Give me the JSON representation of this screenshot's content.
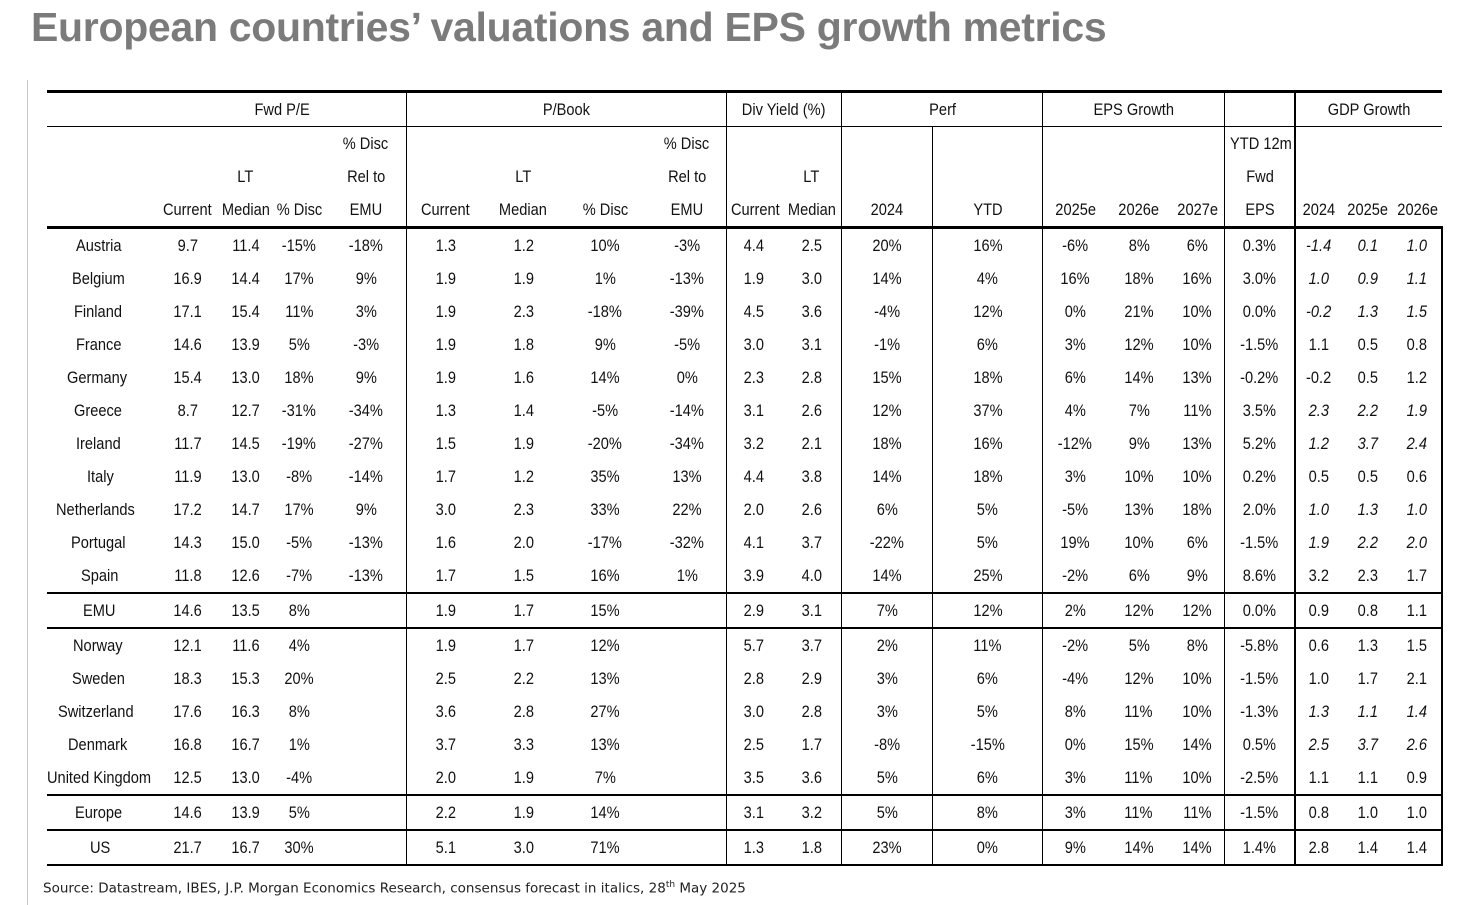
{
  "title": "European countries’ valuations and EPS growth metrics",
  "groups": {
    "fwd_pe": "Fwd P/E",
    "p_book": "P/Book",
    "div_yield": "Div Yield (%)",
    "perf": "Perf",
    "eps_growth": "EPS Growth",
    "gdp_growth": "GDP Growth"
  },
  "subheaders": {
    "disc_rel_1": "% Disc",
    "disc_rel_2": "Rel to",
    "disc_rel_3": "EMU",
    "lt": "LT",
    "current": "Current",
    "median": "Median",
    "pct_disc": "% Disc",
    "ytd12m_1": "YTD 12m",
    "ytd12m_2": "Fwd",
    "ytd12m_3": "EPS",
    "y2024": "2024",
    "ytd": "YTD",
    "y2025e": "2025e",
    "y2026e": "2026e",
    "y2027e": "2027e",
    "g2024": "2024",
    "g2025e": "2025e",
    "g2026e": "2026e"
  },
  "rows": [
    {
      "name": "Austria",
      "c": [
        "9.7",
        "11.4",
        "-15%",
        "-18%",
        "1.3",
        "1.2",
        "10%",
        "-3%",
        "4.4",
        "2.5",
        "20%",
        "16%",
        "-6%",
        "8%",
        "6%",
        "0.3%"
      ],
      "g": [
        "-1.4",
        "0.1",
        "1.0"
      ],
      "gi": [
        true,
        true,
        true
      ]
    },
    {
      "name": "Belgium",
      "c": [
        "16.9",
        "14.4",
        "17%",
        "9%",
        "1.9",
        "1.9",
        "1%",
        "-13%",
        "1.9",
        "3.0",
        "14%",
        "4%",
        "16%",
        "18%",
        "16%",
        "3.0%"
      ],
      "g": [
        "1.0",
        "0.9",
        "1.1"
      ],
      "gi": [
        true,
        true,
        true
      ]
    },
    {
      "name": "Finland",
      "c": [
        "17.1",
        "15.4",
        "11%",
        "3%",
        "1.9",
        "2.3",
        "-18%",
        "-39%",
        "4.5",
        "3.6",
        "-4%",
        "12%",
        "0%",
        "21%",
        "10%",
        "0.0%"
      ],
      "g": [
        "-0.2",
        "1.3",
        "1.5"
      ],
      "gi": [
        true,
        true,
        true
      ]
    },
    {
      "name": "France",
      "c": [
        "14.6",
        "13.9",
        "5%",
        "-3%",
        "1.9",
        "1.8",
        "9%",
        "-5%",
        "3.0",
        "3.1",
        "-1%",
        "6%",
        "3%",
        "12%",
        "10%",
        "-1.5%"
      ],
      "g": [
        "1.1",
        "0.5",
        "0.8"
      ],
      "gi": [
        false,
        false,
        false
      ]
    },
    {
      "name": "Germany",
      "c": [
        "15.4",
        "13.0",
        "18%",
        "9%",
        "1.9",
        "1.6",
        "14%",
        "0%",
        "2.3",
        "2.8",
        "15%",
        "18%",
        "6%",
        "14%",
        "13%",
        "-0.2%"
      ],
      "g": [
        "-0.2",
        "0.5",
        "1.2"
      ],
      "gi": [
        false,
        false,
        false
      ]
    },
    {
      "name": "Greece",
      "c": [
        "8.7",
        "12.7",
        "-31%",
        "-34%",
        "1.3",
        "1.4",
        "-5%",
        "-14%",
        "3.1",
        "2.6",
        "12%",
        "37%",
        "4%",
        "7%",
        "11%",
        "3.5%"
      ],
      "g": [
        "2.3",
        "2.2",
        "1.9"
      ],
      "gi": [
        true,
        true,
        true
      ]
    },
    {
      "name": "Ireland",
      "c": [
        "11.7",
        "14.5",
        "-19%",
        "-27%",
        "1.5",
        "1.9",
        "-20%",
        "-34%",
        "3.2",
        "2.1",
        "18%",
        "16%",
        "-12%",
        "9%",
        "13%",
        "5.2%"
      ],
      "g": [
        "1.2",
        "3.7",
        "2.4"
      ],
      "gi": [
        true,
        true,
        true
      ]
    },
    {
      "name": "Italy",
      "c": [
        "11.9",
        "13.0",
        "-8%",
        "-14%",
        "1.7",
        "1.2",
        "35%",
        "13%",
        "4.4",
        "3.8",
        "14%",
        "18%",
        "3%",
        "10%",
        "10%",
        "0.2%"
      ],
      "g": [
        "0.5",
        "0.5",
        "0.6"
      ],
      "gi": [
        false,
        false,
        false
      ]
    },
    {
      "name": "Netherlands",
      "c": [
        "17.2",
        "14.7",
        "17%",
        "9%",
        "3.0",
        "2.3",
        "33%",
        "22%",
        "2.0",
        "2.6",
        "6%",
        "5%",
        "-5%",
        "13%",
        "18%",
        "2.0%"
      ],
      "g": [
        "1.0",
        "1.3",
        "1.0"
      ],
      "gi": [
        true,
        true,
        true
      ]
    },
    {
      "name": "Portugal",
      "c": [
        "14.3",
        "15.0",
        "-5%",
        "-13%",
        "1.6",
        "2.0",
        "-17%",
        "-32%",
        "4.1",
        "3.7",
        "-22%",
        "5%",
        "19%",
        "10%",
        "6%",
        "-1.5%"
      ],
      "g": [
        "1.9",
        "2.2",
        "2.0"
      ],
      "gi": [
        true,
        true,
        true
      ]
    },
    {
      "name": "Spain",
      "c": [
        "11.8",
        "12.6",
        "-7%",
        "-13%",
        "1.7",
        "1.5",
        "16%",
        "1%",
        "3.9",
        "4.0",
        "14%",
        "25%",
        "-2%",
        "6%",
        "9%",
        "8.6%"
      ],
      "g": [
        "3.2",
        "2.3",
        "1.7"
      ],
      "gi": [
        false,
        false,
        false
      ]
    },
    {
      "name": "EMU",
      "c": [
        "14.6",
        "13.5",
        "8%",
        "",
        "1.9",
        "1.7",
        "15%",
        "",
        "2.9",
        "3.1",
        "7%",
        "12%",
        "2%",
        "12%",
        "12%",
        "0.0%"
      ],
      "g": [
        "0.9",
        "0.8",
        "1.1"
      ],
      "gi": [
        false,
        false,
        false
      ]
    },
    {
      "name": "Norway",
      "c": [
        "12.1",
        "11.6",
        "4%",
        "",
        "1.9",
        "1.7",
        "12%",
        "",
        "5.7",
        "3.7",
        "2%",
        "11%",
        "-2%",
        "5%",
        "8%",
        "-5.8%"
      ],
      "g": [
        "0.6",
        "1.3",
        "1.5"
      ],
      "gi": [
        false,
        false,
        false
      ]
    },
    {
      "name": "Sweden",
      "c": [
        "18.3",
        "15.3",
        "20%",
        "",
        "2.5",
        "2.2",
        "13%",
        "",
        "2.8",
        "2.9",
        "3%",
        "6%",
        "-4%",
        "12%",
        "10%",
        "-1.5%"
      ],
      "g": [
        "1.0",
        "1.7",
        "2.1"
      ],
      "gi": [
        false,
        false,
        false
      ]
    },
    {
      "name": "Switzerland",
      "c": [
        "17.6",
        "16.3",
        "8%",
        "",
        "3.6",
        "2.8",
        "27%",
        "",
        "3.0",
        "2.8",
        "3%",
        "5%",
        "8%",
        "11%",
        "10%",
        "-1.3%"
      ],
      "g": [
        "1.3",
        "1.1",
        "1.4"
      ],
      "gi": [
        true,
        true,
        true
      ]
    },
    {
      "name": "Denmark",
      "c": [
        "16.8",
        "16.7",
        "1%",
        "",
        "3.7",
        "3.3",
        "13%",
        "",
        "2.5",
        "1.7",
        "-8%",
        "-15%",
        "0%",
        "15%",
        "14%",
        "0.5%"
      ],
      "g": [
        "2.5",
        "3.7",
        "2.6"
      ],
      "gi": [
        true,
        true,
        true
      ]
    },
    {
      "name": "United Kingdom",
      "c": [
        "12.5",
        "13.0",
        "-4%",
        "",
        "2.0",
        "1.9",
        "7%",
        "",
        "3.5",
        "3.6",
        "5%",
        "6%",
        "3%",
        "11%",
        "10%",
        "-2.5%"
      ],
      "g": [
        "1.1",
        "1.1",
        "0.9"
      ],
      "gi": [
        false,
        false,
        false
      ]
    },
    {
      "name": "Europe",
      "c": [
        "14.6",
        "13.9",
        "5%",
        "",
        "2.2",
        "1.9",
        "14%",
        "",
        "3.1",
        "3.2",
        "5%",
        "8%",
        "3%",
        "11%",
        "11%",
        "-1.5%"
      ],
      "g": [
        "0.8",
        "1.0",
        "1.0"
      ],
      "gi": [
        false,
        false,
        false
      ]
    },
    {
      "name": "US",
      "c": [
        "21.7",
        "16.7",
        "30%",
        "",
        "5.1",
        "3.0",
        "71%",
        "",
        "1.3",
        "1.8",
        "23%",
        "0%",
        "9%",
        "14%",
        "14%",
        "1.4%"
      ],
      "g": [
        "2.8",
        "1.4",
        "1.4"
      ],
      "gi": [
        false,
        false,
        false
      ]
    }
  ],
  "source": {
    "before": "Source: Datastream, IBES, J.P. Morgan Economics Research, consensus forecast in italics, 28",
    "sup": "th",
    "after": " May 2025"
  }
}
